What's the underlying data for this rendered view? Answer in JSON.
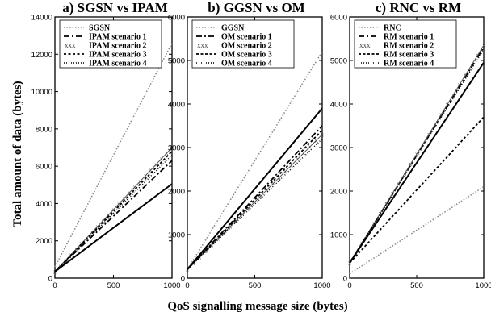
{
  "figure": {
    "ylabel": "Total amount of data (bytes)",
    "xlabel": "QoS signalling message size (bytes)"
  },
  "chart_data": [
    {
      "type": "line",
      "title": "a) SGSN vs IPAM",
      "xlim": [
        0,
        1000
      ],
      "ylim": [
        0,
        14000
      ],
      "xticks": [
        0,
        500,
        1000
      ],
      "yticks": [
        0,
        2000,
        4000,
        6000,
        8000,
        10000,
        12000,
        14000
      ],
      "grid": false,
      "legend_position": "top-left",
      "x": [
        0,
        1000
      ],
      "series": [
        {
          "name": "SGSN",
          "values": [
            600,
            12600
          ],
          "style": "dotted-light"
        },
        {
          "name": "IPAM scenario 1",
          "values": [
            350,
            6300
          ],
          "style": "dashdot"
        },
        {
          "name": "IPAM scenario 2",
          "values": [
            350,
            7000
          ],
          "style": "crossed"
        },
        {
          "name": "IPAM scenario 3",
          "values": [
            350,
            6800
          ],
          "style": "dashed"
        },
        {
          "name": "IPAM scenario 4",
          "values": [
            350,
            6600
          ],
          "style": "dotted"
        },
        {
          "name": "",
          "values": [
            350,
            5050
          ],
          "style": "solid"
        }
      ]
    },
    {
      "type": "line",
      "title": "b) GGSN vs OM",
      "xlim": [
        0,
        1000
      ],
      "ylim": [
        0,
        6000
      ],
      "xticks": [
        0,
        500,
        1000
      ],
      "yticks": [
        0,
        1000,
        2000,
        3000,
        4000,
        5000,
        6000
      ],
      "grid": false,
      "legend_position": "top-left",
      "x": [
        0,
        1000
      ],
      "series": [
        {
          "name": "GGSN",
          "values": [
            200,
            5200
          ],
          "style": "dotted-light"
        },
        {
          "name": "OM scenario 1",
          "values": [
            200,
            3500
          ],
          "style": "dashdot"
        },
        {
          "name": "OM scenario 2",
          "values": [
            200,
            3300
          ],
          "style": "crossed"
        },
        {
          "name": "OM scenario 3",
          "values": [
            200,
            3400
          ],
          "style": "dashed"
        },
        {
          "name": "OM scenario 4",
          "values": [
            200,
            3200
          ],
          "style": "dotted"
        },
        {
          "name": "",
          "values": [
            200,
            3900
          ],
          "style": "solid"
        }
      ]
    },
    {
      "type": "line",
      "title": "c) RNC vs RM",
      "xlim": [
        0,
        1000
      ],
      "ylim": [
        0,
        6000
      ],
      "xticks": [
        0,
        500,
        1000
      ],
      "yticks": [
        0,
        1000,
        2000,
        3000,
        4000,
        5000,
        6000
      ],
      "grid": false,
      "legend_position": "top-left",
      "x": [
        0,
        1000
      ],
      "series": [
        {
          "name": "RNC",
          "values": [
            100,
            2100
          ],
          "style": "dotted-light"
        },
        {
          "name": "RM scenario 1",
          "values": [
            350,
            5300
          ],
          "style": "dashdot"
        },
        {
          "name": "RM scenario 2",
          "values": [
            350,
            5350
          ],
          "style": "crossed"
        },
        {
          "name": "RM scenario 3",
          "values": [
            350,
            3700
          ],
          "style": "dashed"
        },
        {
          "name": "RM scenario 4",
          "values": [
            350,
            5250
          ],
          "style": "dotted"
        },
        {
          "name": "",
          "values": [
            350,
            4950
          ],
          "style": "solid"
        }
      ]
    }
  ]
}
